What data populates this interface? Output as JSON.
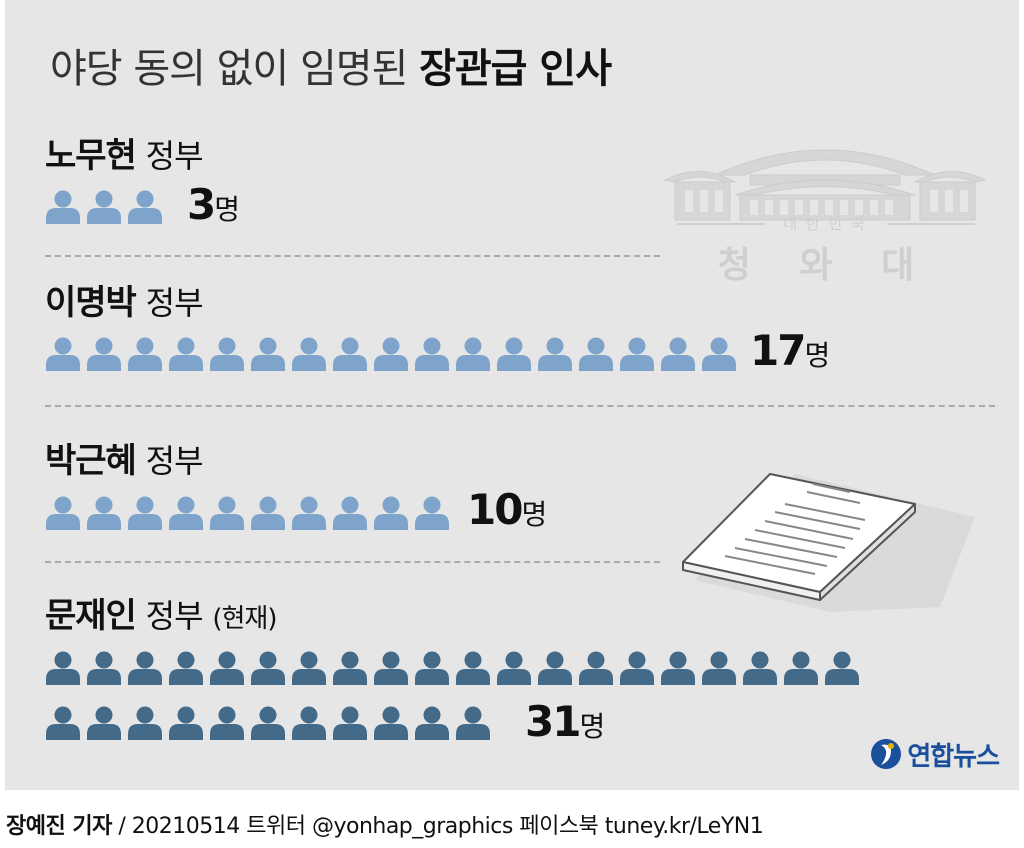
{
  "title": {
    "light": "야당 동의 없이 임명된",
    "bold": "장관급 인사"
  },
  "chart_data": {
    "type": "bar",
    "title": "야당 동의 없이 임명된 장관급 인사",
    "categories": [
      "노무현 정부",
      "이명박 정부",
      "박근혜 정부",
      "문재인 정부 (현재)"
    ],
    "values": [
      3,
      17,
      10,
      31
    ],
    "unit": "명"
  },
  "rows": [
    {
      "name": "노무현",
      "suffix": "정부",
      "note": "",
      "count": "3",
      "unit": "명",
      "value": 3,
      "color": "#7fa4cc"
    },
    {
      "name": "이명박",
      "suffix": "정부",
      "note": "",
      "count": "17",
      "unit": "명",
      "value": 17,
      "color": "#7fa4cc"
    },
    {
      "name": "박근혜",
      "suffix": "정부",
      "note": "",
      "count": "10",
      "unit": "명",
      "value": 10,
      "color": "#7fa4cc"
    },
    {
      "name": "문재인",
      "suffix": "정부",
      "note": "(현재)",
      "count": "31",
      "unit": "명",
      "value": 31,
      "color": "#446a89"
    }
  ],
  "bluehouse": {
    "country": "대 한 민 국",
    "name": "청 와 대"
  },
  "logo": {
    "text": "연합뉴스",
    "icon": "yonhap-logo-icon",
    "color": "#1a4f9c"
  },
  "credit": {
    "reporter": "장예진 기자",
    "rest": "/ 20210514 트위터 @yonhap_graphics  페이스북 tuney.kr/LeYN1"
  }
}
